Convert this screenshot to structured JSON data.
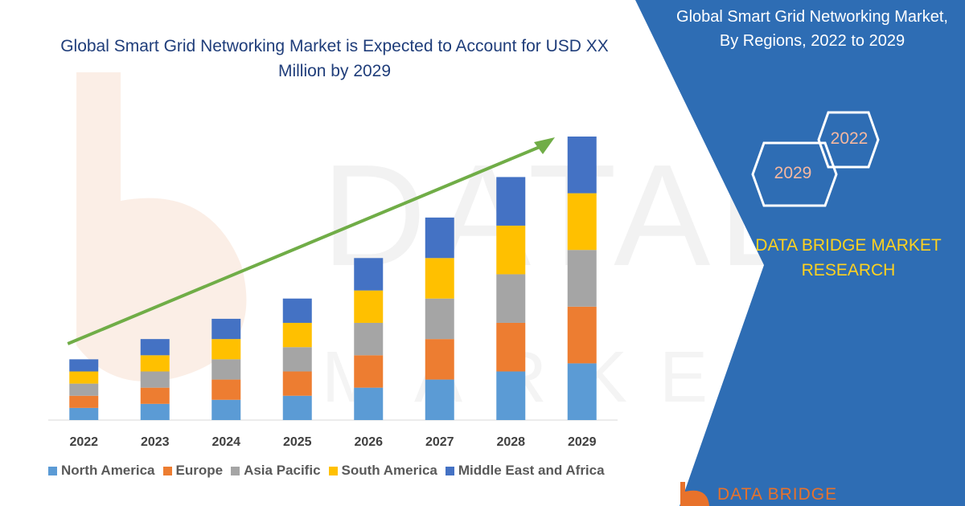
{
  "chart_data": {
    "type": "bar",
    "stacked": true,
    "title": "Global Smart Grid Networking Market is Expected to Account for USD XX Million by 2029",
    "categories": [
      "2022",
      "2023",
      "2024",
      "2025",
      "2026",
      "2027",
      "2028",
      "2029"
    ],
    "series": [
      {
        "name": "North America",
        "color": "#5b9bd5",
        "values": [
          15,
          20,
          25,
          30,
          40,
          50,
          60,
          70
        ]
      },
      {
        "name": "Europe",
        "color": "#ed7d31",
        "values": [
          15,
          20,
          25,
          30,
          40,
          50,
          60,
          70
        ]
      },
      {
        "name": "Asia Pacific",
        "color": "#a5a5a5",
        "values": [
          15,
          20,
          25,
          30,
          40,
          50,
          60,
          70
        ]
      },
      {
        "name": "South America",
        "color": "#ffc000",
        "values": [
          15,
          20,
          25,
          30,
          40,
          50,
          60,
          70
        ]
      },
      {
        "name": "Middle East and Africa",
        "color": "#4472c4",
        "values": [
          15,
          20,
          25,
          30,
          40,
          50,
          60,
          70
        ]
      }
    ],
    "ylim": [
      0,
      350
    ],
    "legend_position": "bottom",
    "grid": false,
    "trend_arrow_color": "#70ad47"
  },
  "panel": {
    "title_line1": "Global Smart Grid Networking Market,",
    "title_line2": "By Regions, 2022 to 2029",
    "hex_top": "2022",
    "hex_bottom": "2029",
    "brand_line1": "DATA BRIDGE MARKET",
    "brand_line2": "RESEARCH",
    "footer_brand": "DATA BRIDGE",
    "background": "#2e6db4"
  }
}
